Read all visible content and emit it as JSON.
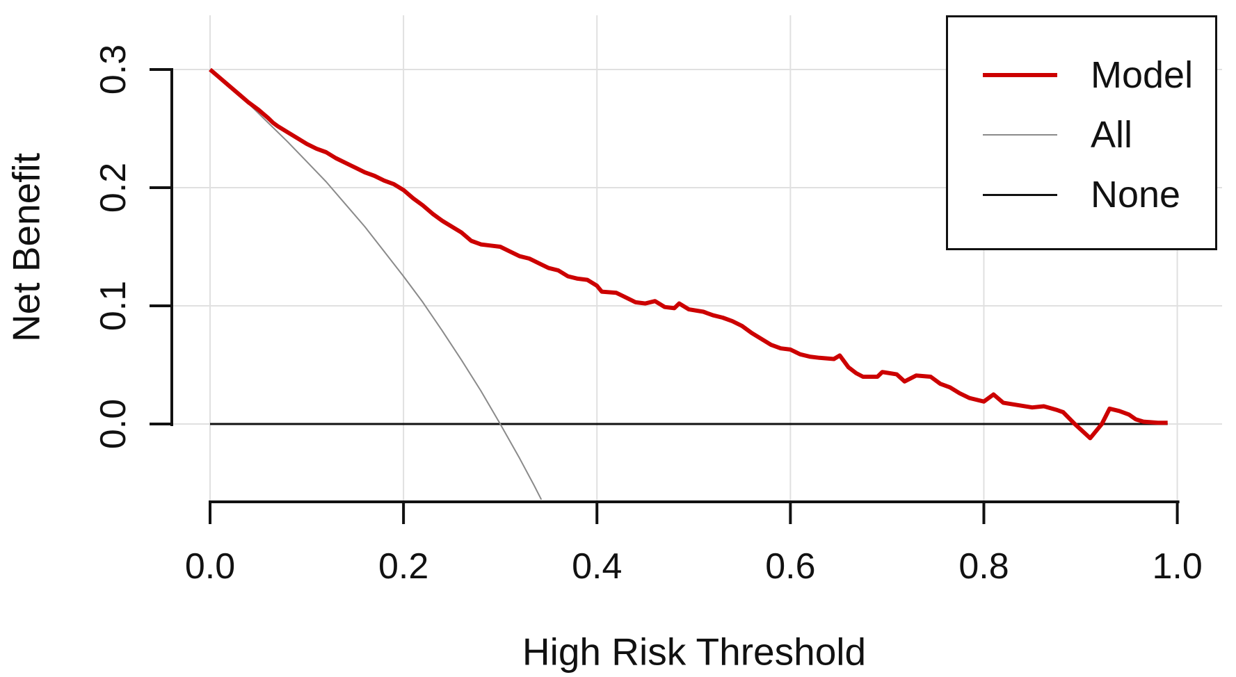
{
  "chart_data": {
    "type": "line",
    "title": "",
    "xlabel": "High Risk Threshold",
    "ylabel": "Net Benefit",
    "xlim": [
      0,
      1
    ],
    "ylim": [
      -0.066,
      0.31
    ],
    "grid": true,
    "legend_position": "top-right",
    "x_ticks": {
      "values": [
        0.0,
        0.2,
        0.4,
        0.6,
        0.8,
        1.0
      ],
      "labels": [
        "0.0",
        "0.2",
        "0.4",
        "0.6",
        "0.8",
        "1.0"
      ]
    },
    "y_ticks": {
      "values": [
        0.0,
        0.1,
        0.2,
        0.3
      ],
      "labels": [
        "0.0",
        "0.1",
        "0.2",
        "0.3"
      ]
    },
    "colors": {
      "model": "#cc0000",
      "all": "#8a8a8a",
      "none": "#111111",
      "grid": "#e0e0e0",
      "axis": "#111111"
    },
    "series": [
      {
        "name": "Model",
        "color": "#cc0000",
        "stroke_width": 6,
        "points": [
          [
            0.0,
            0.3
          ],
          [
            0.01,
            0.293
          ],
          [
            0.02,
            0.286
          ],
          [
            0.03,
            0.279
          ],
          [
            0.04,
            0.272
          ],
          [
            0.05,
            0.266
          ],
          [
            0.06,
            0.259
          ],
          [
            0.065,
            0.255
          ],
          [
            0.07,
            0.252
          ],
          [
            0.08,
            0.247
          ],
          [
            0.09,
            0.242
          ],
          [
            0.1,
            0.237
          ],
          [
            0.11,
            0.233
          ],
          [
            0.12,
            0.23
          ],
          [
            0.13,
            0.225
          ],
          [
            0.14,
            0.221
          ],
          [
            0.15,
            0.217
          ],
          [
            0.16,
            0.213
          ],
          [
            0.17,
            0.21
          ],
          [
            0.18,
            0.206
          ],
          [
            0.19,
            0.203
          ],
          [
            0.2,
            0.198
          ],
          [
            0.21,
            0.191
          ],
          [
            0.22,
            0.185
          ],
          [
            0.23,
            0.178
          ],
          [
            0.24,
            0.172
          ],
          [
            0.25,
            0.167
          ],
          [
            0.26,
            0.162
          ],
          [
            0.27,
            0.155
          ],
          [
            0.28,
            0.152
          ],
          [
            0.29,
            0.151
          ],
          [
            0.3,
            0.15
          ],
          [
            0.31,
            0.146
          ],
          [
            0.32,
            0.142
          ],
          [
            0.33,
            0.14
          ],
          [
            0.34,
            0.136
          ],
          [
            0.35,
            0.132
          ],
          [
            0.36,
            0.13
          ],
          [
            0.37,
            0.125
          ],
          [
            0.38,
            0.123
          ],
          [
            0.39,
            0.122
          ],
          [
            0.4,
            0.117
          ],
          [
            0.405,
            0.112
          ],
          [
            0.42,
            0.111
          ],
          [
            0.43,
            0.107
          ],
          [
            0.44,
            0.103
          ],
          [
            0.45,
            0.102
          ],
          [
            0.46,
            0.104
          ],
          [
            0.47,
            0.099
          ],
          [
            0.48,
            0.098
          ],
          [
            0.485,
            0.102
          ],
          [
            0.495,
            0.097
          ],
          [
            0.51,
            0.095
          ],
          [
            0.52,
            0.092
          ],
          [
            0.53,
            0.09
          ],
          [
            0.54,
            0.087
          ],
          [
            0.55,
            0.083
          ],
          [
            0.56,
            0.077
          ],
          [
            0.57,
            0.072
          ],
          [
            0.58,
            0.067
          ],
          [
            0.59,
            0.064
          ],
          [
            0.6,
            0.063
          ],
          [
            0.61,
            0.059
          ],
          [
            0.62,
            0.057
          ],
          [
            0.63,
            0.056
          ],
          [
            0.645,
            0.055
          ],
          [
            0.651,
            0.058
          ],
          [
            0.66,
            0.048
          ],
          [
            0.668,
            0.043
          ],
          [
            0.675,
            0.04
          ],
          [
            0.69,
            0.04
          ],
          [
            0.695,
            0.044
          ],
          [
            0.71,
            0.042
          ],
          [
            0.718,
            0.036
          ],
          [
            0.73,
            0.041
          ],
          [
            0.745,
            0.04
          ],
          [
            0.755,
            0.034
          ],
          [
            0.765,
            0.031
          ],
          [
            0.775,
            0.026
          ],
          [
            0.785,
            0.022
          ],
          [
            0.8,
            0.019
          ],
          [
            0.81,
            0.025
          ],
          [
            0.82,
            0.018
          ],
          [
            0.835,
            0.016
          ],
          [
            0.85,
            0.014
          ],
          [
            0.862,
            0.015
          ],
          [
            0.875,
            0.012
          ],
          [
            0.882,
            0.01
          ],
          [
            0.894,
            0.0
          ],
          [
            0.91,
            -0.012
          ],
          [
            0.922,
            0.0
          ],
          [
            0.93,
            0.013
          ],
          [
            0.94,
            0.011
          ],
          [
            0.95,
            0.008
          ],
          [
            0.957,
            0.004
          ],
          [
            0.965,
            0.002
          ],
          [
            0.98,
            0.001
          ],
          [
            0.99,
            0.001
          ]
        ]
      },
      {
        "name": "All",
        "color": "#8a8a8a",
        "stroke_width": 2,
        "points": [
          [
            0.0,
            0.3
          ],
          [
            0.02,
            0.286
          ],
          [
            0.04,
            0.271
          ],
          [
            0.06,
            0.255
          ],
          [
            0.08,
            0.239
          ],
          [
            0.1,
            0.222
          ],
          [
            0.12,
            0.205
          ],
          [
            0.14,
            0.186
          ],
          [
            0.16,
            0.167
          ],
          [
            0.18,
            0.146
          ],
          [
            0.2,
            0.125
          ],
          [
            0.22,
            0.103
          ],
          [
            0.24,
            0.079
          ],
          [
            0.26,
            0.054
          ],
          [
            0.28,
            0.028
          ],
          [
            0.3,
            0.0
          ],
          [
            0.32,
            -0.029
          ],
          [
            0.335,
            -0.052
          ],
          [
            0.3425,
            -0.064
          ]
        ]
      },
      {
        "name": "None",
        "color": "#111111",
        "stroke_width": 3,
        "points": [
          [
            0.0,
            0.0
          ],
          [
            0.99,
            0.0
          ]
        ]
      }
    ]
  },
  "legend": {
    "items": [
      {
        "label": "Model",
        "color": "#cc0000",
        "thickness": 6
      },
      {
        "label": "All",
        "color": "#8a8a8a",
        "thickness": 2
      },
      {
        "label": "None",
        "color": "#111111",
        "thickness": 3
      }
    ]
  }
}
